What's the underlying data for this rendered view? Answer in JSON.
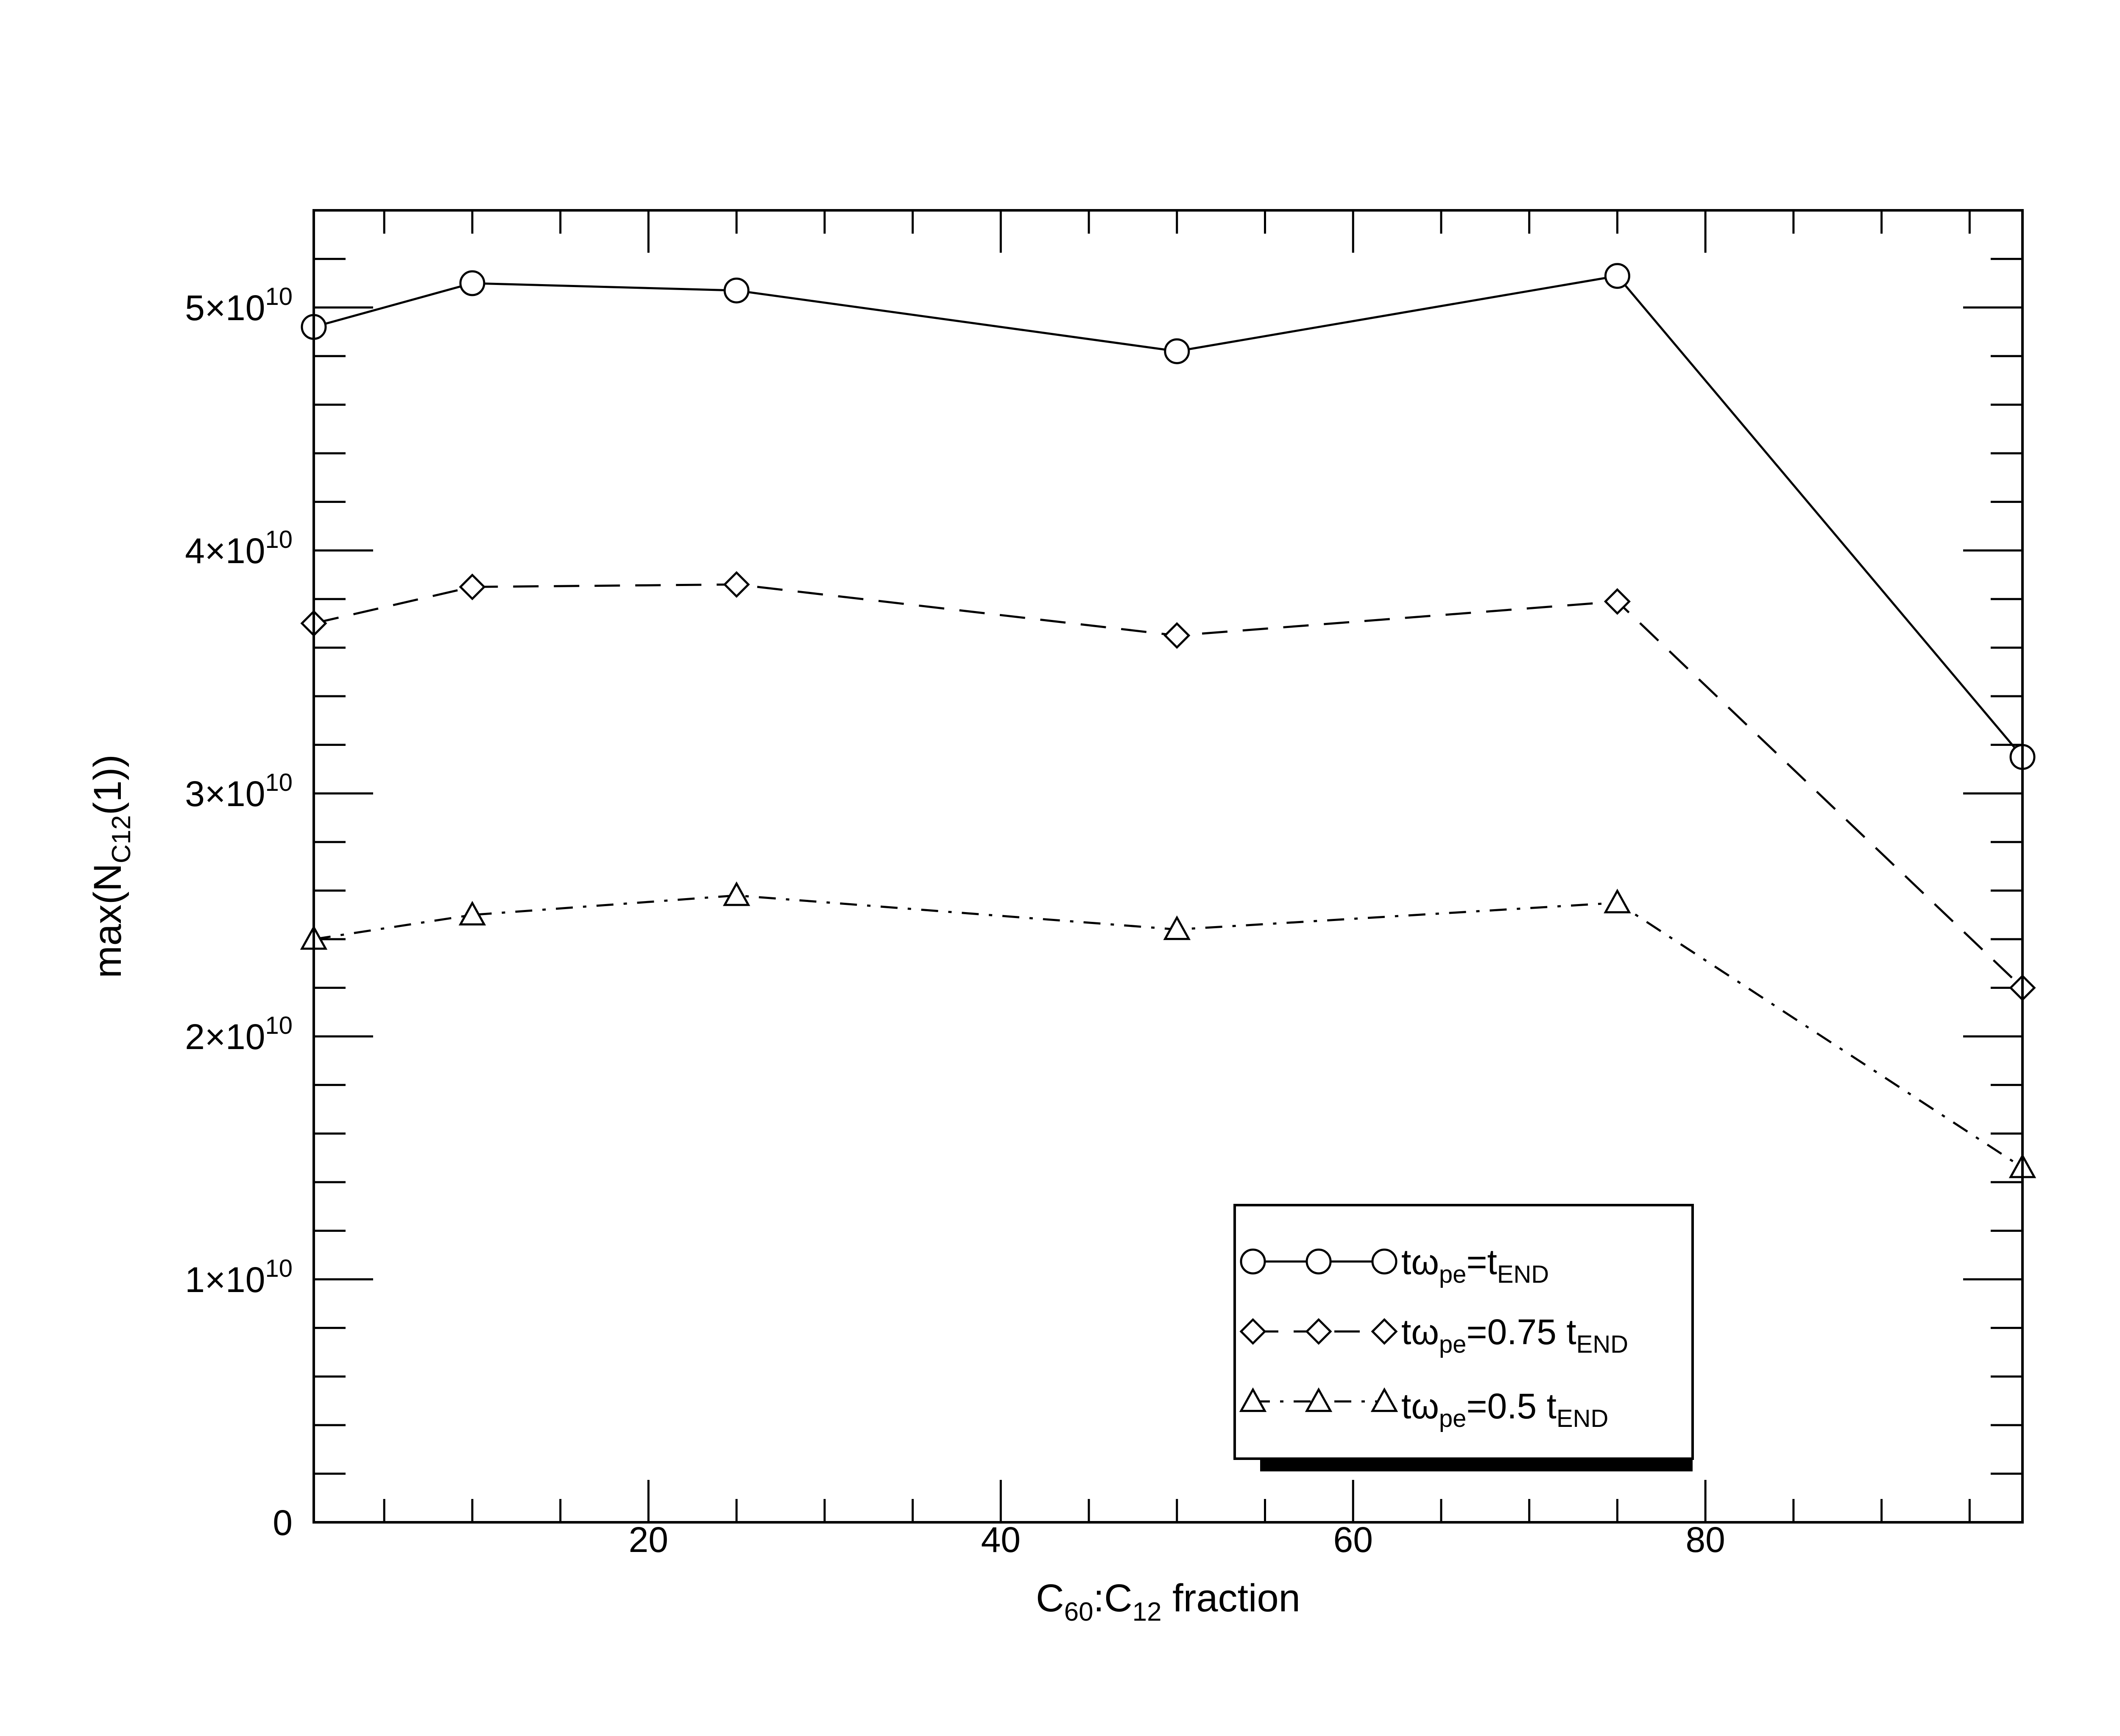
{
  "chart_data": {
    "type": "line",
    "xlabel": {
      "base": "C",
      "sub1": "60",
      "mid": ":C",
      "sub2": "12",
      "rest": " fraction"
    },
    "ylabel": {
      "prefix": "max(N",
      "sub": "C12",
      "suffix": "(1))"
    },
    "xlim": [
      1,
      98
    ],
    "ylim": [
      0,
      54000000000.0
    ],
    "x_ticks": [
      {
        "value": 20,
        "label": "20"
      },
      {
        "value": 40,
        "label": "40"
      },
      {
        "value": 60,
        "label": "60"
      },
      {
        "value": 80,
        "label": "80"
      }
    ],
    "y_ticks": [
      {
        "value": 0,
        "mantissa": "0",
        "exp": ""
      },
      {
        "value": 10000000000.0,
        "mantissa": "1×10",
        "exp": "10"
      },
      {
        "value": 20000000000.0,
        "mantissa": "2×10",
        "exp": "10"
      },
      {
        "value": 30000000000.0,
        "mantissa": "3×10",
        "exp": "10"
      },
      {
        "value": 40000000000.0,
        "mantissa": "4×10",
        "exp": "10"
      },
      {
        "value": 50000000000.0,
        "mantissa": "5×10",
        "exp": "10"
      }
    ],
    "legend_position": "bottom-right",
    "series": [
      {
        "id": "circle",
        "label": {
          "t": "tω",
          "sub1": "pe",
          "eq": "=t",
          "sub2": "END",
          "tail": ""
        },
        "marker": "circle",
        "dash": "",
        "x": [
          1,
          10,
          25,
          50,
          75,
          98
        ],
        "y": [
          49200000000.0,
          51000000000.0,
          50700000000.0,
          48200000000.0,
          51300000000.0,
          31500000000.0
        ]
      },
      {
        "id": "diamond",
        "label": {
          "t": "tω",
          "sub1": "pe",
          "eq": "=0.75 t",
          "sub2": "END",
          "tail": ""
        },
        "marker": "diamond",
        "dash": "60,36",
        "x": [
          1,
          10,
          25,
          50,
          75,
          98
        ],
        "y": [
          37000000000.0,
          38500000000.0,
          38600000000.0,
          36500000000.0,
          37900000000.0,
          22000000000.0
        ]
      },
      {
        "id": "triangle",
        "label": {
          "t": "tω",
          "sub1": "pe",
          "eq": "=0.5 t",
          "sub2": "END",
          "tail": ""
        },
        "marker": "triangle",
        "dash": "40,24,8,24",
        "x": [
          1,
          10,
          25,
          50,
          75,
          98
        ],
        "y": [
          24000000000.0,
          25000000000.0,
          25800000000.0,
          24400000000.0,
          25500000000.0,
          14600000000.0
        ]
      }
    ]
  }
}
